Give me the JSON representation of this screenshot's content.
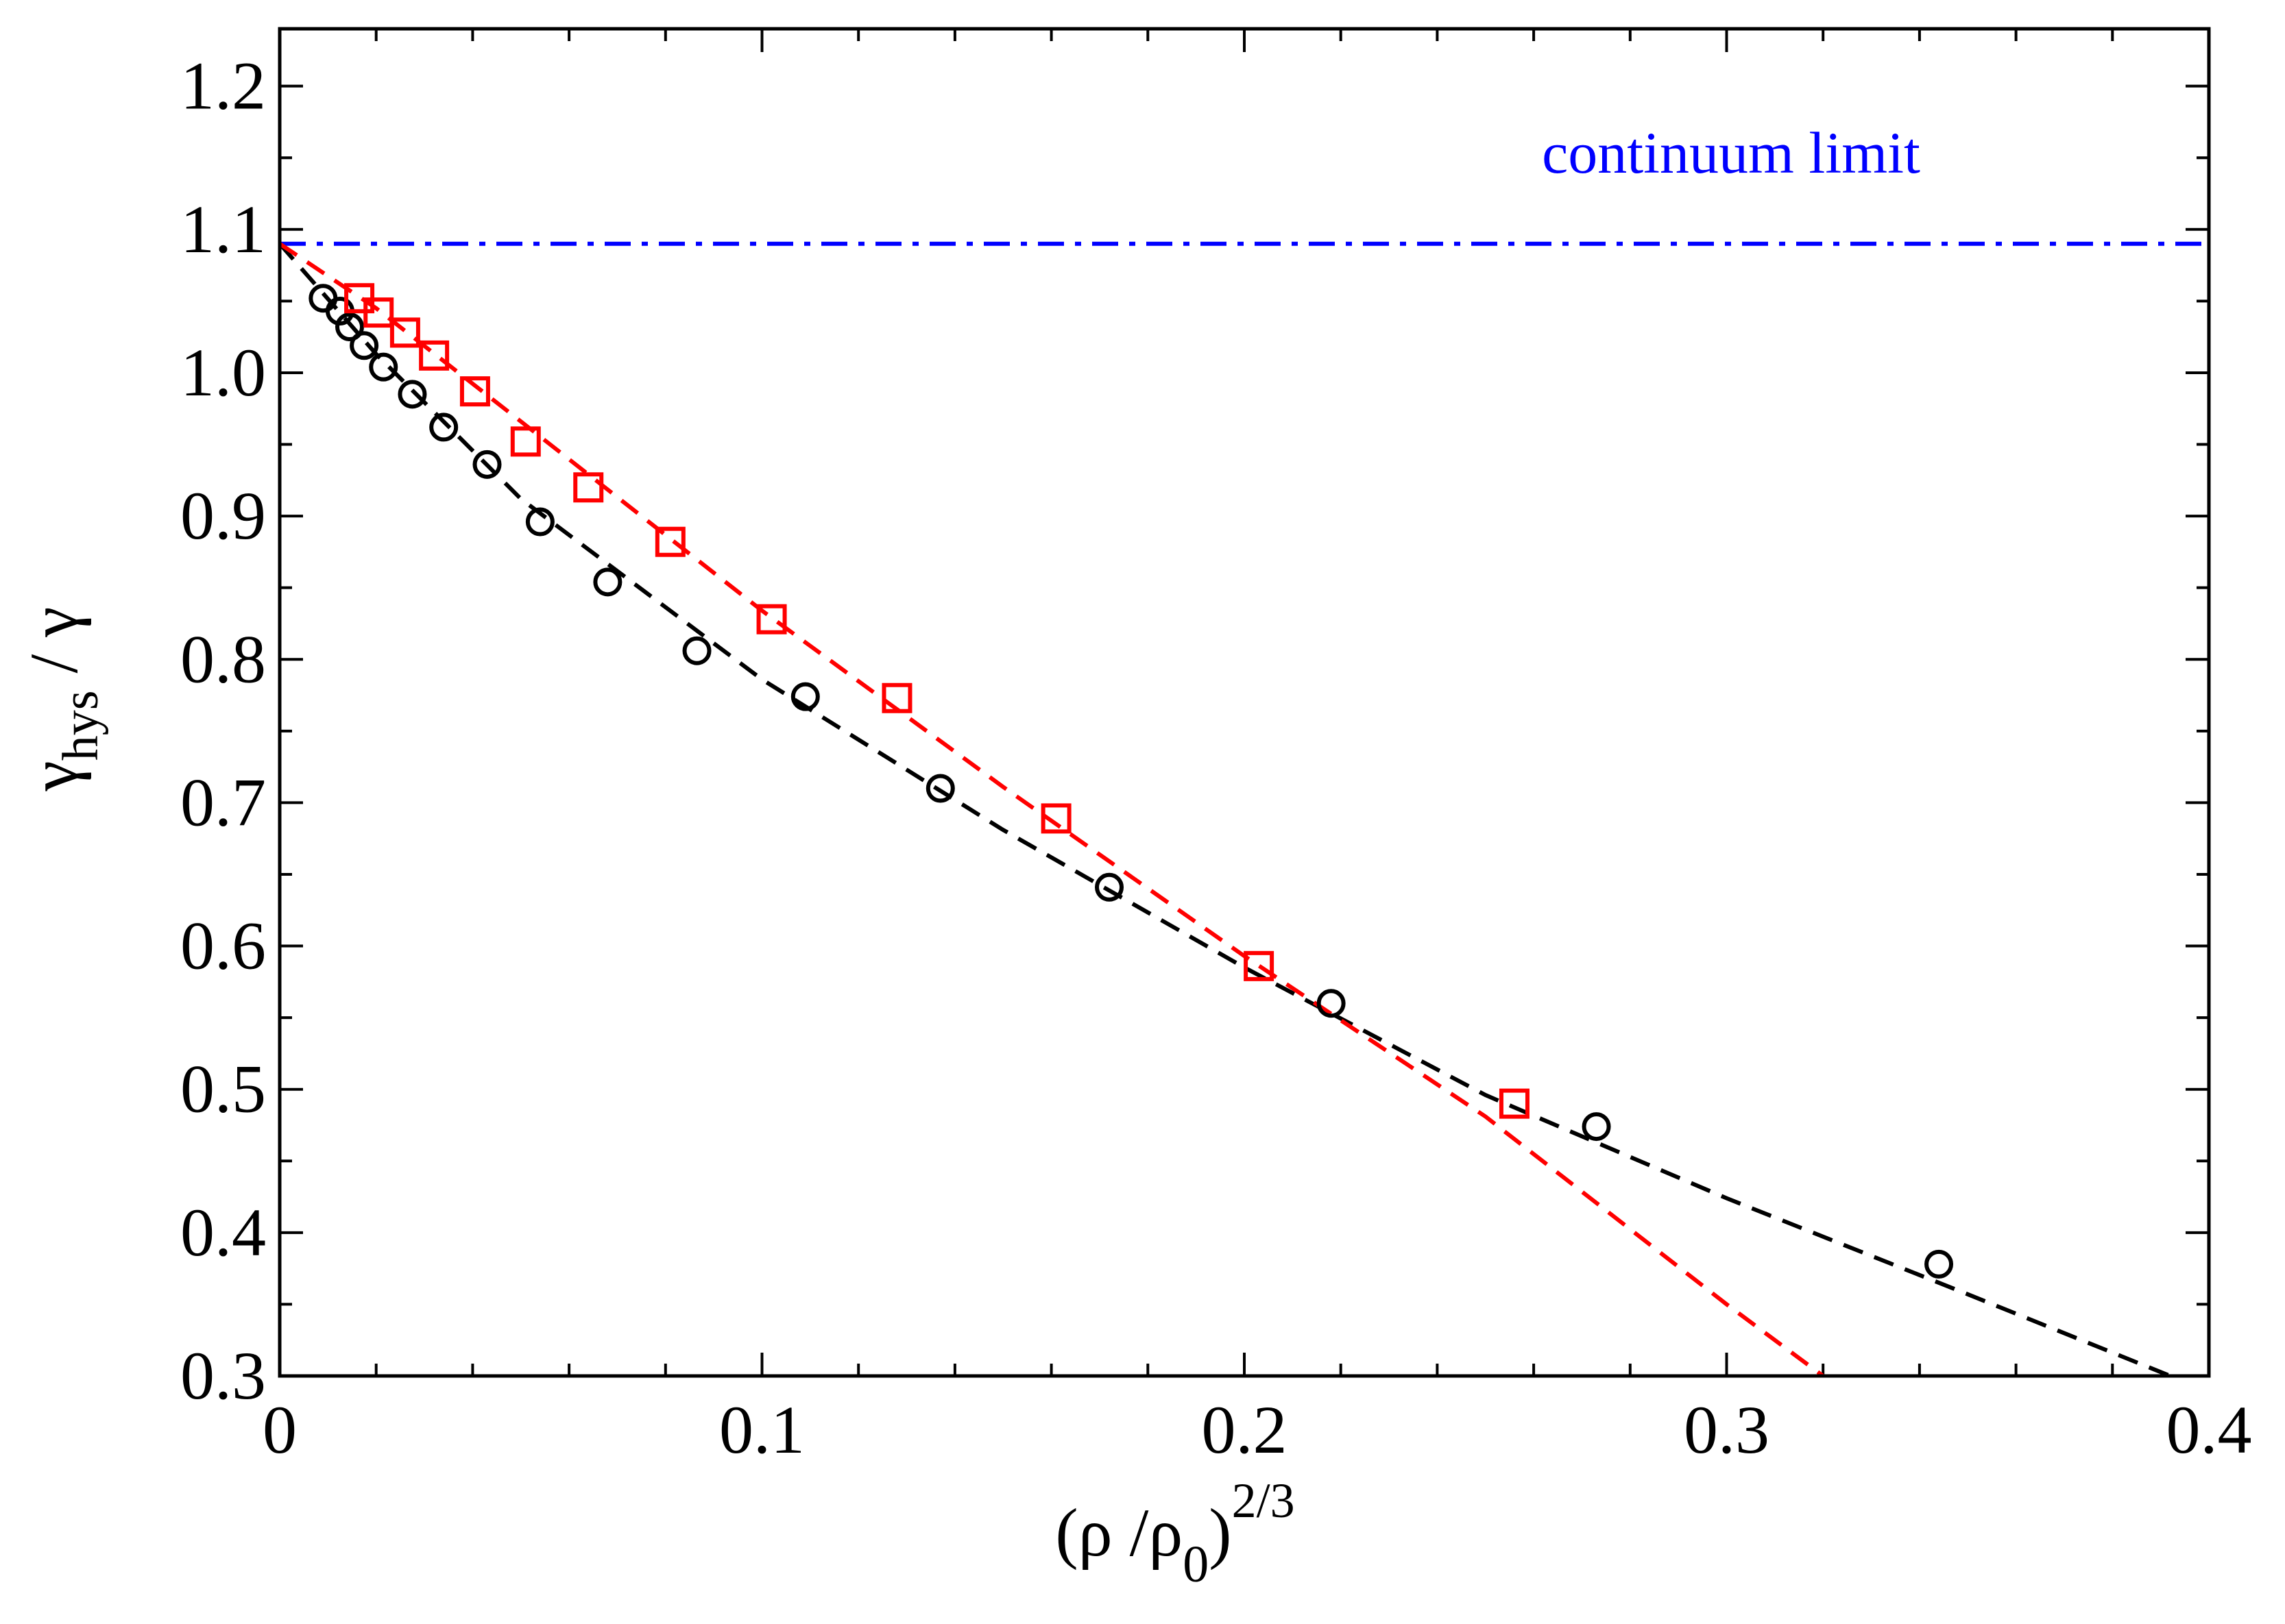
{
  "chart_data": {
    "type": "scatter",
    "title": "",
    "xlabel": {
      "open": "(ρ /ρ",
      "sub": "0",
      "close": ")",
      "sup": "2/3"
    },
    "ylabel": {
      "main": "γ",
      "sub": "hys",
      "rest": " / γ"
    },
    "xlim": [
      0,
      0.4
    ],
    "ylim": [
      0.3,
      1.24
    ],
    "xticks": [
      0,
      0.1,
      0.2,
      0.3,
      0.4
    ],
    "xtick_labels": [
      "0",
      "0.1",
      "0.2",
      "0.3",
      "0.4"
    ],
    "yticks": [
      0.3,
      0.4,
      0.5,
      0.6,
      0.7,
      0.8,
      0.9,
      1.0,
      1.1,
      1.2
    ],
    "ytick_labels": [
      "0.3",
      "0.4",
      "0.5",
      "0.6",
      "0.7",
      "0.8",
      "0.9",
      "1.0",
      "1.1",
      "1.2"
    ],
    "grid": false,
    "reference_line": {
      "label": "continuum limit",
      "y": 1.09,
      "color": "#0000ff",
      "style": "dash-dot"
    },
    "series": [
      {
        "name": "circles",
        "marker": "circle",
        "color": "#000000",
        "points": [
          [
            0.009,
            1.052
          ],
          [
            0.0125,
            1.043
          ],
          [
            0.0145,
            1.032
          ],
          [
            0.0175,
            1.019
          ],
          [
            0.0215,
            1.004
          ],
          [
            0.0275,
            0.985
          ],
          [
            0.034,
            0.962
          ],
          [
            0.043,
            0.936
          ],
          [
            0.054,
            0.896
          ],
          [
            0.068,
            0.854
          ],
          [
            0.0865,
            0.806
          ],
          [
            0.109,
            0.774
          ],
          [
            0.137,
            0.71
          ],
          [
            0.172,
            0.641
          ],
          [
            0.218,
            0.56
          ],
          [
            0.273,
            0.474
          ],
          [
            0.344,
            0.378
          ]
        ],
        "fit": [
          [
            0,
            1.09
          ],
          [
            0.02,
            1.013
          ],
          [
            0.05,
            0.912
          ],
          [
            0.1,
            0.786
          ],
          [
            0.15,
            0.681
          ],
          [
            0.2,
            0.585
          ],
          [
            0.25,
            0.496
          ],
          [
            0.3,
            0.424
          ],
          [
            0.35,
            0.357
          ],
          [
            0.392,
            0.3
          ]
        ]
      },
      {
        "name": "squares",
        "marker": "square",
        "color": "#ff0000",
        "points": [
          [
            0.0165,
            1.052
          ],
          [
            0.0205,
            1.042
          ],
          [
            0.026,
            1.028
          ],
          [
            0.032,
            1.012
          ],
          [
            0.0405,
            0.987
          ],
          [
            0.051,
            0.952
          ],
          [
            0.064,
            0.92
          ],
          [
            0.081,
            0.882
          ],
          [
            0.102,
            0.828
          ],
          [
            0.128,
            0.773
          ],
          [
            0.161,
            0.689
          ],
          [
            0.203,
            0.586
          ],
          [
            0.256,
            0.49
          ]
        ],
        "fit": [
          [
            0,
            1.09
          ],
          [
            0.02,
            1.045
          ],
          [
            0.05,
            0.966
          ],
          [
            0.1,
            0.834
          ],
          [
            0.15,
            0.711
          ],
          [
            0.2,
            0.593
          ],
          [
            0.25,
            0.481
          ],
          [
            0.3,
            0.35
          ],
          [
            0.32,
            0.3
          ]
        ]
      }
    ]
  }
}
